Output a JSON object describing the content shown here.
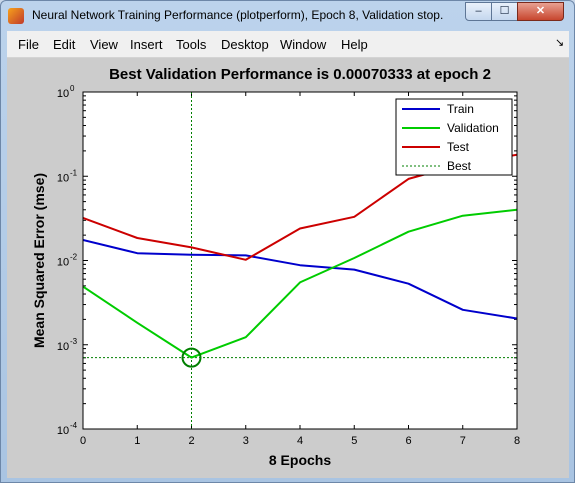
{
  "window": {
    "title": "Neural Network Training Performance (plotperform), Epoch 8, Validation stop.",
    "controls": {
      "minimize": "–",
      "maximize": "☐",
      "close": "✕"
    }
  },
  "menubar": {
    "items": [
      "File",
      "Edit",
      "View",
      "Insert",
      "Tools",
      "Desktop",
      "Window",
      "Help"
    ],
    "dock_glyph": "↘"
  },
  "chart_data": {
    "type": "line",
    "title": "Best Validation Performance is 0.00070333 at epoch 2",
    "xlabel": "8 Epochs",
    "ylabel": "Mean Squared Error  (mse)",
    "xlim": [
      0,
      8
    ],
    "ylim": [
      0.0001,
      1
    ],
    "yscale": "log",
    "x_ticks": [
      "0",
      "1",
      "2",
      "3",
      "4",
      "5",
      "6",
      "7",
      "8"
    ],
    "y_ticks": [
      {
        "base": "10",
        "exp": "0",
        "value": 1
      },
      {
        "base": "10",
        "exp": "-1",
        "value": 0.1
      },
      {
        "base": "10",
        "exp": "-2",
        "value": 0.01
      },
      {
        "base": "10",
        "exp": "-3",
        "value": 0.001
      },
      {
        "base": "10",
        "exp": "-4",
        "value": 0.0001
      }
    ],
    "legend_position": "top-right",
    "x": [
      0,
      1,
      2,
      3,
      4,
      5,
      6,
      7,
      8
    ],
    "series": [
      {
        "name": "Train",
        "color": "#0000cc",
        "style": "solid",
        "values": [
          0.0175,
          0.0122,
          0.0117,
          0.0115,
          0.0088,
          0.0078,
          0.0053,
          0.0026,
          0.00205
        ]
      },
      {
        "name": "Validation",
        "color": "#00cc00",
        "style": "solid",
        "values": [
          0.0049,
          0.00182,
          0.00070333,
          0.00123,
          0.0055,
          0.0107,
          0.022,
          0.034,
          0.04
        ]
      },
      {
        "name": "Test",
        "color": "#cc0000",
        "style": "solid",
        "values": [
          0.032,
          0.0185,
          0.0143,
          0.0102,
          0.024,
          0.033,
          0.093,
          0.14,
          0.18
        ]
      }
    ],
    "best": {
      "name": "Best",
      "color": "#007f00",
      "style": "dotted",
      "epoch": 2,
      "value": 0.00070333
    }
  }
}
